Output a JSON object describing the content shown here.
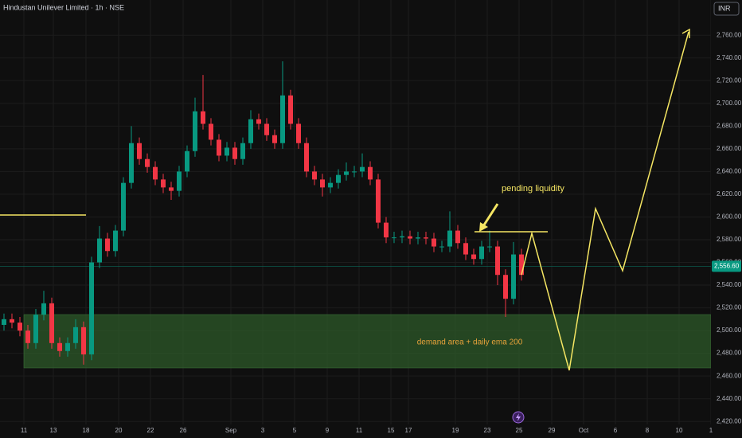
{
  "chart_data": {
    "type": "candlestick",
    "title": "Hindustan Unilever Limited · 1h · NSE",
    "currency": "INR",
    "colors": {
      "up": "#089981",
      "down": "#f23645"
    },
    "categories": [
      "11",
      "13",
      "18",
      "20",
      "22",
      "26",
      "Sep",
      "3",
      "5",
      "9",
      "11",
      "15",
      "17",
      "19",
      "23",
      "25",
      "29",
      "Oct",
      "6",
      "8",
      "10",
      "1"
    ],
    "open": [
      2505,
      2510,
      2507,
      2500,
      2489,
      2514,
      2524,
      2489,
      2482,
      2489,
      2503,
      2479,
      2560,
      2581,
      2570,
      2588,
      2630,
      2665,
      2651,
      2644,
      2633,
      2626,
      2623,
      2640,
      2658,
      2693,
      2682,
      2668,
      2654,
      2661,
      2651,
      2665,
      2686,
      2682,
      2672,
      2665,
      2707,
      2682,
      2665,
      2640,
      2633,
      2626,
      2630,
      2637,
      2640,
      2640,
      2644,
      2633,
      2595,
      2582,
      2582,
      2583,
      2581,
      2582,
      2581,
      2574,
      2574,
      2588,
      2577,
      2567,
      2563,
      2574,
      2574,
      2549,
      2528,
      2567
    ],
    "high": [
      2515,
      2515,
      2512,
      2505,
      2519,
      2535,
      2529,
      2494,
      2494,
      2510,
      2508,
      2565,
      2592,
      2586,
      2593,
      2635,
      2680,
      2670,
      2656,
      2649,
      2638,
      2631,
      2645,
      2663,
      2705,
      2725,
      2687,
      2673,
      2666,
      2666,
      2670,
      2694,
      2691,
      2687,
      2677,
      2737,
      2712,
      2687,
      2670,
      2645,
      2638,
      2635,
      2642,
      2648,
      2645,
      2656,
      2649,
      2638,
      2600,
      2587,
      2588,
      2588,
      2587,
      2587,
      2586,
      2579,
      2605,
      2593,
      2582,
      2572,
      2579,
      2588,
      2579,
      2554,
      2578,
      2572
    ],
    "low": [
      2500,
      2502,
      2495,
      2484,
      2484,
      2509,
      2484,
      2477,
      2477,
      2484,
      2470,
      2474,
      2555,
      2565,
      2565,
      2583,
      2625,
      2646,
      2639,
      2628,
      2621,
      2615,
      2618,
      2635,
      2653,
      2677,
      2663,
      2649,
      2649,
      2646,
      2646,
      2660,
      2677,
      2667,
      2660,
      2660,
      2677,
      2660,
      2635,
      2628,
      2618,
      2621,
      2625,
      2632,
      2635,
      2635,
      2628,
      2590,
      2577,
      2577,
      2577,
      2576,
      2576,
      2576,
      2569,
      2569,
      2569,
      2572,
      2562,
      2558,
      2558,
      2569,
      2540,
      2512,
      2523,
      2544
    ],
    "close": [
      2510,
      2507,
      2500,
      2489,
      2514,
      2524,
      2489,
      2482,
      2489,
      2503,
      2479,
      2560,
      2581,
      2570,
      2588,
      2630,
      2665,
      2651,
      2644,
      2633,
      2626,
      2623,
      2640,
      2658,
      2693,
      2682,
      2668,
      2654,
      2661,
      2651,
      2665,
      2686,
      2682,
      2672,
      2665,
      2707,
      2682,
      2665,
      2640,
      2633,
      2626,
      2630,
      2637,
      2640,
      2640,
      2644,
      2633,
      2595,
      2582,
      2582,
      2583,
      2581,
      2582,
      2581,
      2574,
      2574,
      2588,
      2577,
      2567,
      2563,
      2574,
      2574,
      2549,
      2528,
      2567,
      2549
    ],
    "last_price": {
      "value": 2556.6,
      "label": "2,556.60"
    },
    "ylim": [
      2417,
      2791
    ],
    "yticks": [
      {
        "value": 2420,
        "label": "2,420.00"
      },
      {
        "value": 2440,
        "label": "2,440.00"
      },
      {
        "value": 2460,
        "label": "2,460.00"
      },
      {
        "value": 2480,
        "label": "2,480.00"
      },
      {
        "value": 2500,
        "label": "2,500.00"
      },
      {
        "value": 2520,
        "label": "2,520.00"
      },
      {
        "value": 2540,
        "label": "2,540.00"
      },
      {
        "value": 2560,
        "label": "2,560.00"
      },
      {
        "value": 2580,
        "label": "2,580.00"
      },
      {
        "value": 2600,
        "label": "2,600.00"
      },
      {
        "value": 2620,
        "label": "2,620.00"
      },
      {
        "value": 2640,
        "label": "2,640.00"
      },
      {
        "value": 2660,
        "label": "2,660.00"
      },
      {
        "value": 2680,
        "label": "2,680.00"
      },
      {
        "value": 2700,
        "label": "2,700.00"
      },
      {
        "value": 2720,
        "label": "2,720.00"
      },
      {
        "value": 2740,
        "label": "2,740.00"
      },
      {
        "value": 2760,
        "label": "2,760.00"
      }
    ],
    "grid": true,
    "annotations": [
      "pending liquidity",
      "demand area + daily ema 200"
    ]
  }
}
